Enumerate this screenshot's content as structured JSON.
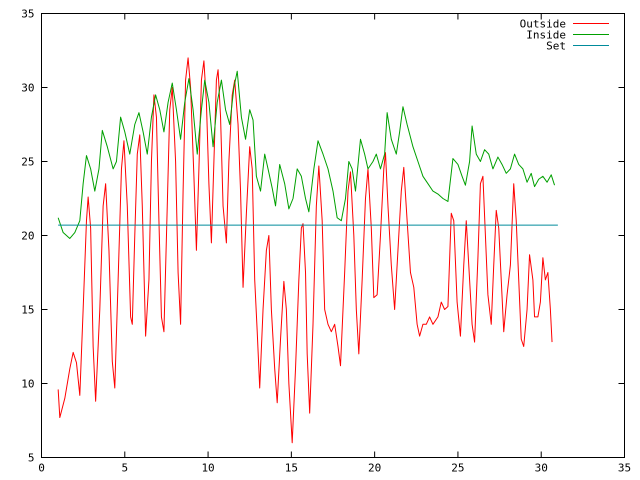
{
  "chart_data": {
    "type": "line",
    "title": "",
    "xlabel": "",
    "ylabel": "",
    "xlim": [
      0,
      35
    ],
    "ylim": [
      5,
      35
    ],
    "xticks": [
      0,
      5,
      10,
      15,
      20,
      25,
      30,
      35
    ],
    "yticks": [
      5,
      10,
      15,
      20,
      25,
      30,
      35
    ],
    "grid": false,
    "legend_position": "top-right",
    "series": [
      {
        "name": "Outside",
        "color": "#ff0000",
        "points": [
          [
            1.0,
            9.6
          ],
          [
            1.1,
            7.7
          ],
          [
            1.4,
            9.0
          ],
          [
            1.7,
            11.0
          ],
          [
            1.9,
            12.1
          ],
          [
            2.1,
            11.4
          ],
          [
            2.3,
            9.2
          ],
          [
            2.5,
            15.0
          ],
          [
            2.7,
            21.0
          ],
          [
            2.8,
            22.6
          ],
          [
            2.95,
            20.5
          ],
          [
            3.1,
            12.5
          ],
          [
            3.25,
            8.8
          ],
          [
            3.5,
            15.0
          ],
          [
            3.7,
            22.0
          ],
          [
            3.85,
            23.5
          ],
          [
            4.05,
            19.0
          ],
          [
            4.25,
            11.5
          ],
          [
            4.4,
            9.7
          ],
          [
            4.6,
            17.0
          ],
          [
            4.8,
            24.5
          ],
          [
            4.95,
            26.4
          ],
          [
            5.15,
            22.0
          ],
          [
            5.35,
            14.5
          ],
          [
            5.45,
            14.0
          ],
          [
            5.6,
            20.0
          ],
          [
            5.75,
            25.5
          ],
          [
            5.9,
            26.8
          ],
          [
            6.05,
            22.0
          ],
          [
            6.25,
            13.2
          ],
          [
            6.45,
            17.0
          ],
          [
            6.6,
            25.0
          ],
          [
            6.75,
            29.5
          ],
          [
            6.9,
            28.0
          ],
          [
            7.05,
            21.0
          ],
          [
            7.2,
            14.5
          ],
          [
            7.35,
            13.5
          ],
          [
            7.55,
            22.0
          ],
          [
            7.7,
            28.5
          ],
          [
            7.85,
            30.0
          ],
          [
            8.05,
            25.0
          ],
          [
            8.2,
            17.5
          ],
          [
            8.35,
            14.0
          ],
          [
            8.5,
            23.0
          ],
          [
            8.65,
            30.5
          ],
          [
            8.8,
            32.0
          ],
          [
            8.95,
            30.0
          ],
          [
            9.15,
            24.0
          ],
          [
            9.3,
            19.0
          ],
          [
            9.45,
            24.5
          ],
          [
            9.6,
            30.5
          ],
          [
            9.75,
            31.8
          ],
          [
            9.9,
            29.0
          ],
          [
            10.05,
            23.5
          ],
          [
            10.2,
            19.5
          ],
          [
            10.35,
            25.0
          ],
          [
            10.5,
            30.5
          ],
          [
            10.6,
            31.2
          ],
          [
            10.75,
            28.0
          ],
          [
            10.9,
            22.0
          ],
          [
            11.1,
            19.5
          ],
          [
            11.25,
            25.0
          ],
          [
            11.45,
            29.5
          ],
          [
            11.6,
            30.5
          ],
          [
            11.8,
            27.5
          ],
          [
            11.95,
            23.0
          ],
          [
            12.1,
            16.5
          ],
          [
            12.3,
            21.5
          ],
          [
            12.5,
            26.0
          ],
          [
            12.65,
            24.5
          ],
          [
            12.8,
            17.0
          ],
          [
            12.95,
            13.5
          ],
          [
            13.1,
            9.7
          ],
          [
            13.3,
            15.0
          ],
          [
            13.5,
            19.0
          ],
          [
            13.65,
            20.0
          ],
          [
            13.8,
            15.0
          ],
          [
            14.0,
            11.0
          ],
          [
            14.15,
            8.7
          ],
          [
            14.35,
            13.0
          ],
          [
            14.55,
            16.9
          ],
          [
            14.7,
            15.0
          ],
          [
            14.85,
            10.0
          ],
          [
            15.05,
            6.0
          ],
          [
            15.25,
            11.0
          ],
          [
            15.45,
            17.0
          ],
          [
            15.6,
            20.5
          ],
          [
            15.7,
            20.8
          ],
          [
            15.85,
            17.5
          ],
          [
            15.95,
            12.0
          ],
          [
            16.1,
            8.0
          ],
          [
            16.3,
            14.0
          ],
          [
            16.5,
            22.0
          ],
          [
            16.65,
            24.7
          ],
          [
            16.85,
            21.0
          ],
          [
            17.0,
            15.0
          ],
          [
            17.2,
            14.0
          ],
          [
            17.4,
            13.5
          ],
          [
            17.6,
            14.0
          ],
          [
            17.8,
            12.5
          ],
          [
            17.95,
            11.2
          ],
          [
            18.2,
            17.5
          ],
          [
            18.4,
            23.0
          ],
          [
            18.55,
            24.3
          ],
          [
            18.75,
            20.0
          ],
          [
            18.9,
            15.0
          ],
          [
            19.05,
            12.0
          ],
          [
            19.25,
            17.0
          ],
          [
            19.45,
            22.5
          ],
          [
            19.6,
            24.5
          ],
          [
            19.8,
            20.5
          ],
          [
            19.95,
            15.8
          ],
          [
            20.15,
            16.0
          ],
          [
            20.35,
            20.0
          ],
          [
            20.55,
            24.5
          ],
          [
            20.65,
            25.6
          ],
          [
            20.8,
            22.0
          ],
          [
            21.0,
            18.0
          ],
          [
            21.2,
            15.0
          ],
          [
            21.4,
            19.0
          ],
          [
            21.6,
            23.0
          ],
          [
            21.75,
            24.6
          ],
          [
            21.95,
            21.0
          ],
          [
            22.15,
            17.5
          ],
          [
            22.35,
            16.5
          ],
          [
            22.55,
            14.0
          ],
          [
            22.7,
            13.2
          ],
          [
            22.9,
            14.0
          ],
          [
            23.1,
            14.0
          ],
          [
            23.3,
            14.5
          ],
          [
            23.5,
            14.0
          ],
          [
            23.8,
            14.5
          ],
          [
            24.0,
            15.5
          ],
          [
            24.2,
            15.0
          ],
          [
            24.4,
            15.2
          ],
          [
            24.6,
            21.5
          ],
          [
            24.75,
            21.0
          ],
          [
            24.95,
            15.5
          ],
          [
            25.15,
            13.2
          ],
          [
            25.35,
            18.0
          ],
          [
            25.5,
            21.0
          ],
          [
            25.65,
            18.0
          ],
          [
            25.85,
            14.0
          ],
          [
            26.0,
            12.8
          ],
          [
            26.2,
            18.5
          ],
          [
            26.35,
            23.5
          ],
          [
            26.5,
            24.0
          ],
          [
            26.65,
            20.0
          ],
          [
            26.8,
            16.0
          ],
          [
            27.0,
            14.0
          ],
          [
            27.15,
            18.0
          ],
          [
            27.3,
            21.7
          ],
          [
            27.45,
            20.5
          ],
          [
            27.6,
            17.0
          ],
          [
            27.75,
            13.5
          ],
          [
            27.95,
            16.0
          ],
          [
            28.15,
            18.0
          ],
          [
            28.35,
            23.5
          ],
          [
            28.5,
            21.0
          ],
          [
            28.65,
            17.0
          ],
          [
            28.8,
            13.0
          ],
          [
            28.95,
            12.5
          ],
          [
            29.15,
            15.0
          ],
          [
            29.3,
            18.7
          ],
          [
            29.5,
            17.0
          ],
          [
            29.6,
            14.5
          ],
          [
            29.8,
            14.5
          ],
          [
            29.95,
            15.5
          ],
          [
            30.1,
            18.5
          ],
          [
            30.25,
            17.0
          ],
          [
            30.4,
            17.5
          ],
          [
            30.55,
            15.0
          ],
          [
            30.65,
            12.8
          ]
        ]
      },
      {
        "name": "Inside",
        "color": "#00a000",
        "points": [
          [
            1.0,
            21.2
          ],
          [
            1.3,
            20.2
          ],
          [
            1.7,
            19.8
          ],
          [
            2.0,
            20.2
          ],
          [
            2.3,
            21.0
          ],
          [
            2.5,
            23.5
          ],
          [
            2.7,
            25.4
          ],
          [
            2.95,
            24.5
          ],
          [
            3.2,
            23.0
          ],
          [
            3.45,
            24.5
          ],
          [
            3.65,
            27.1
          ],
          [
            3.95,
            26.0
          ],
          [
            4.3,
            24.5
          ],
          [
            4.5,
            25.0
          ],
          [
            4.75,
            28.0
          ],
          [
            5.0,
            27.0
          ],
          [
            5.3,
            25.5
          ],
          [
            5.6,
            27.5
          ],
          [
            5.85,
            28.3
          ],
          [
            6.1,
            27.0
          ],
          [
            6.35,
            25.5
          ],
          [
            6.6,
            28.0
          ],
          [
            6.85,
            29.5
          ],
          [
            7.1,
            28.5
          ],
          [
            7.35,
            27.0
          ],
          [
            7.6,
            29.0
          ],
          [
            7.85,
            30.3
          ],
          [
            8.1,
            28.5
          ],
          [
            8.35,
            26.5
          ],
          [
            8.6,
            29.0
          ],
          [
            8.85,
            30.6
          ],
          [
            9.1,
            28.5
          ],
          [
            9.35,
            25.5
          ],
          [
            9.6,
            28.5
          ],
          [
            9.8,
            30.5
          ],
          [
            10.05,
            29.0
          ],
          [
            10.3,
            26.0
          ],
          [
            10.55,
            29.0
          ],
          [
            10.8,
            30.5
          ],
          [
            11.05,
            28.5
          ],
          [
            11.3,
            27.5
          ],
          [
            11.55,
            30.0
          ],
          [
            11.75,
            31.1
          ],
          [
            12.0,
            28.0
          ],
          [
            12.25,
            26.5
          ],
          [
            12.5,
            28.5
          ],
          [
            12.7,
            27.8
          ],
          [
            12.9,
            24.0
          ],
          [
            13.15,
            23.0
          ],
          [
            13.4,
            25.5
          ],
          [
            13.6,
            24.5
          ],
          [
            13.85,
            23.2
          ],
          [
            14.05,
            22.0
          ],
          [
            14.3,
            24.8
          ],
          [
            14.6,
            23.5
          ],
          [
            14.85,
            21.8
          ],
          [
            15.1,
            22.5
          ],
          [
            15.35,
            24.5
          ],
          [
            15.6,
            24.0
          ],
          [
            15.85,
            22.5
          ],
          [
            16.05,
            21.6
          ],
          [
            16.35,
            24.5
          ],
          [
            16.6,
            26.4
          ],
          [
            16.9,
            25.5
          ],
          [
            17.2,
            24.5
          ],
          [
            17.5,
            23.0
          ],
          [
            17.75,
            21.2
          ],
          [
            18.0,
            21.0
          ],
          [
            18.25,
            22.5
          ],
          [
            18.45,
            25.0
          ],
          [
            18.65,
            24.5
          ],
          [
            18.85,
            23.0
          ],
          [
            19.15,
            26.5
          ],
          [
            19.4,
            25.5
          ],
          [
            19.6,
            24.5
          ],
          [
            19.9,
            25.0
          ],
          [
            20.1,
            25.5
          ],
          [
            20.35,
            24.5
          ],
          [
            20.6,
            25.5
          ],
          [
            20.75,
            28.3
          ],
          [
            21.0,
            26.5
          ],
          [
            21.3,
            25.5
          ],
          [
            21.5,
            27.0
          ],
          [
            21.7,
            28.7
          ],
          [
            21.95,
            27.5
          ],
          [
            22.3,
            26.0
          ],
          [
            22.6,
            25.0
          ],
          [
            22.9,
            24.0
          ],
          [
            23.2,
            23.5
          ],
          [
            23.5,
            23.0
          ],
          [
            23.8,
            22.8
          ],
          [
            24.1,
            22.5
          ],
          [
            24.4,
            22.3
          ],
          [
            24.7,
            25.2
          ],
          [
            25.0,
            24.8
          ],
          [
            25.25,
            24.0
          ],
          [
            25.45,
            23.4
          ],
          [
            25.7,
            25.0
          ],
          [
            25.85,
            27.4
          ],
          [
            26.1,
            25.5
          ],
          [
            26.35,
            25.0
          ],
          [
            26.6,
            25.8
          ],
          [
            26.85,
            25.5
          ],
          [
            27.1,
            24.5
          ],
          [
            27.4,
            25.3
          ],
          [
            27.65,
            24.8
          ],
          [
            27.9,
            24.2
          ],
          [
            28.15,
            24.5
          ],
          [
            28.4,
            25.5
          ],
          [
            28.65,
            24.8
          ],
          [
            28.9,
            24.5
          ],
          [
            29.15,
            23.6
          ],
          [
            29.4,
            24.2
          ],
          [
            29.6,
            23.3
          ],
          [
            29.85,
            23.8
          ],
          [
            30.1,
            24.0
          ],
          [
            30.35,
            23.6
          ],
          [
            30.6,
            24.1
          ],
          [
            30.8,
            23.4
          ]
        ]
      },
      {
        "name": "Set",
        "color": "#008b9b",
        "points": [
          [
            1.0,
            20.7
          ],
          [
            31.0,
            20.7
          ]
        ]
      }
    ]
  }
}
